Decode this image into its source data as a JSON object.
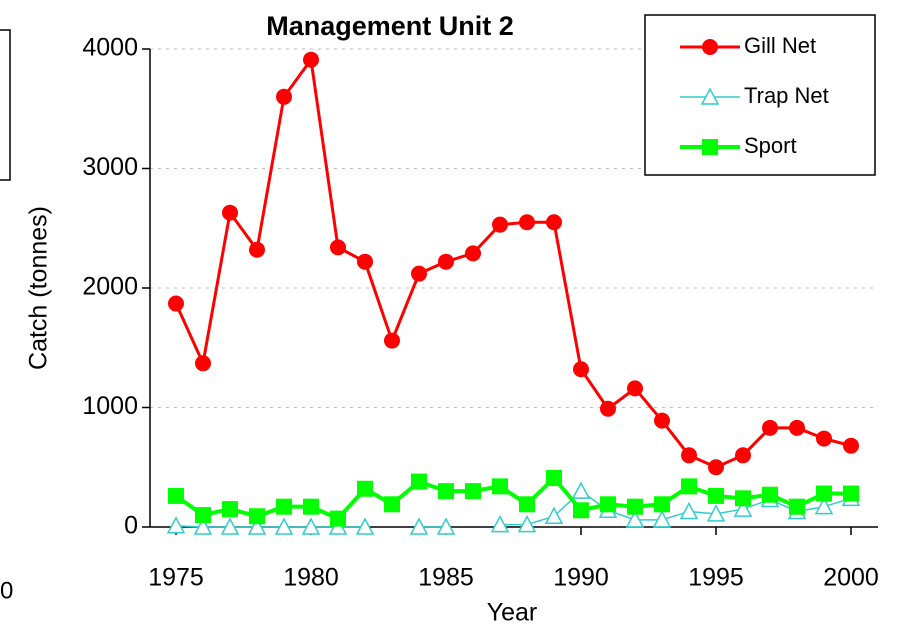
{
  "chart_data": {
    "type": "line",
    "title": "Management Unit 2",
    "x_label": "Year",
    "y_label": "Catch (tonnes)",
    "x": [
      1975,
      1976,
      1977,
      1978,
      1979,
      1980,
      1981,
      1982,
      1983,
      1984,
      1985,
      1986,
      1987,
      1988,
      1989,
      1990,
      1991,
      1992,
      1993,
      1994,
      1995,
      1996,
      1997,
      1998,
      1999,
      2000
    ],
    "series": [
      {
        "name": "Gill Net",
        "color": "#ff0000",
        "marker": "circle",
        "values": [
          1870,
          1370,
          2630,
          2320,
          3600,
          3910,
          2340,
          2220,
          1560,
          2120,
          2220,
          2290,
          2530,
          2550,
          2550,
          1320,
          990,
          1160,
          890,
          600,
          500,
          600,
          830,
          830,
          740,
          680
        ]
      },
      {
        "name": "Trap Net",
        "color": "#33cccc",
        "marker": "triangle",
        "values": [
          10,
          0,
          0,
          0,
          0,
          0,
          0,
          0,
          null,
          0,
          0,
          null,
          20,
          20,
          90,
          300,
          140,
          60,
          60,
          130,
          110,
          150,
          230,
          130,
          170,
          240
        ]
      },
      {
        "name": "Sport",
        "color": "#00ff00",
        "marker": "square",
        "values": [
          260,
          100,
          150,
          90,
          170,
          170,
          70,
          320,
          190,
          380,
          300,
          300,
          340,
          190,
          410,
          140,
          190,
          170,
          190,
          340,
          260,
          240,
          270,
          170,
          280,
          280
        ]
      }
    ],
    "xlim": [
      1975,
      2000
    ],
    "xticks": [
      1975,
      1980,
      1985,
      1990,
      1995,
      2000
    ],
    "ylim": [
      0,
      4000
    ],
    "yticks": [
      0,
      1000,
      2000,
      3000,
      4000
    ],
    "grid": true,
    "legend": "upper right"
  },
  "left_fragment": {
    "text": "0"
  }
}
